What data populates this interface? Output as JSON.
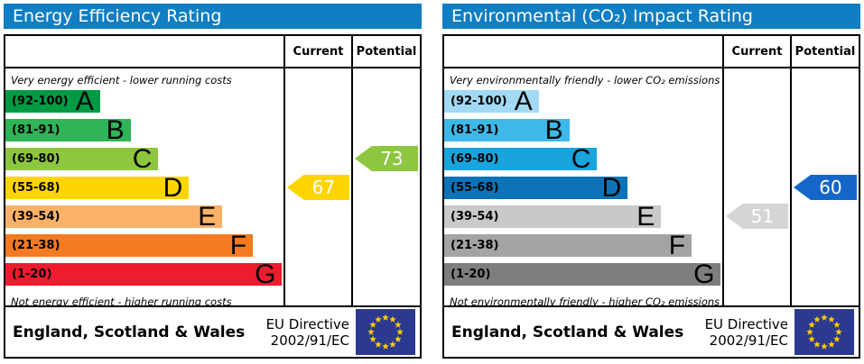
{
  "chart_data": [
    {
      "type": "bar",
      "title": "Energy Efficiency Rating",
      "top_caption": "Very energy efficient - lower running costs",
      "bottom_caption": "Not energy efficient - higher running costs",
      "categories": [
        "A",
        "B",
        "C",
        "D",
        "E",
        "F",
        "G"
      ],
      "band_ranges": [
        "92-100",
        "81-91",
        "69-80",
        "55-68",
        "39-54",
        "21-38",
        "1-20"
      ],
      "bar_width_pct": [
        34,
        45,
        55,
        66,
        78,
        89,
        99.5
      ],
      "current": 67,
      "current_band": "D",
      "potential": 73,
      "potential_band": "C",
      "footer": "England, Scotland & Wales — EU Directive 2002/91/EC"
    },
    {
      "type": "bar",
      "title": "Environmental (CO₂) Impact Rating",
      "top_caption": "Very environmentally friendly - lower CO₂ emissions",
      "bottom_caption": "Not environmentally friendly - higher CO₂ emissions",
      "categories": [
        "A",
        "B",
        "C",
        "D",
        "E",
        "F",
        "G"
      ],
      "band_ranges": [
        "92-100",
        "81-91",
        "69-80",
        "55-68",
        "39-54",
        "21-38",
        "1-20"
      ],
      "bar_width_pct": [
        34,
        45,
        55,
        66,
        78,
        89,
        99.5
      ],
      "current": 51,
      "current_band": "E",
      "potential": 60,
      "potential_band": "D",
      "footer": "England, Scotland & Wales — EU Directive 2002/91/EC"
    }
  ],
  "panels": [
    {
      "title": "Energy Efficiency Rating",
      "title_bg": "#0f7ec3",
      "col_current": "Current",
      "col_potential": "Potential",
      "top_caption": "Very energy efficient - lower running costs",
      "bottom_caption": "Not energy efficient - higher running costs",
      "bands": [
        {
          "letter": "A",
          "range": "(92-100)",
          "color": "#009a44",
          "width_pct": 34
        },
        {
          "letter": "B",
          "range": "(81-91)",
          "color": "#2fb457",
          "width_pct": 45
        },
        {
          "letter": "C",
          "range": "(69-80)",
          "color": "#8dc63f",
          "width_pct": 55
        },
        {
          "letter": "D",
          "range": "(55-68)",
          "color": "#ffd500",
          "width_pct": 66
        },
        {
          "letter": "E",
          "range": "(39-54)",
          "color": "#fbb268",
          "width_pct": 78
        },
        {
          "letter": "F",
          "range": "(21-38)",
          "color": "#f37b21",
          "width_pct": 89
        },
        {
          "letter": "G",
          "range": "(1-20)",
          "color": "#ed1c2e",
          "width_pct": 99.5
        }
      ],
      "current": {
        "value": "67",
        "band_index": 3,
        "color": "#ffd500"
      },
      "potential": {
        "value": "73",
        "band_index": 2,
        "color": "#8dc63f"
      },
      "footer_region": "England, Scotland & Wales",
      "directive_line1": "EU Directive",
      "directive_line2": "2002/91/EC",
      "flag_bg": "#2b3990",
      "flag_star": "#ffcc00"
    },
    {
      "title": "Environmental (CO₂) Impact Rating",
      "title_bg": "#0f7ec3",
      "col_current": "Current",
      "col_potential": "Potential",
      "top_caption": "Very environmentally friendly - lower CO₂ emissions",
      "bottom_caption": "Not environmentally friendly - higher CO₂ emissions",
      "bands": [
        {
          "letter": "A",
          "range": "(92-100)",
          "color": "#a2d9f3",
          "width_pct": 34
        },
        {
          "letter": "B",
          "range": "(81-91)",
          "color": "#3eb8e8",
          "width_pct": 45
        },
        {
          "letter": "C",
          "range": "(69-80)",
          "color": "#1aa4dc",
          "width_pct": 55
        },
        {
          "letter": "D",
          "range": "(55-68)",
          "color": "#0c73b8",
          "width_pct": 66
        },
        {
          "letter": "E",
          "range": "(39-54)",
          "color": "#c9c9c9",
          "width_pct": 78
        },
        {
          "letter": "F",
          "range": "(21-38)",
          "color": "#a4a4a4",
          "width_pct": 89
        },
        {
          "letter": "G",
          "range": "(1-20)",
          "color": "#7e7e7e",
          "width_pct": 99.5
        }
      ],
      "current": {
        "value": "51",
        "band_index": 4,
        "color": "#d5d5d5"
      },
      "potential": {
        "value": "60",
        "band_index": 3,
        "color": "#1467c8"
      },
      "footer_region": "England, Scotland & Wales",
      "directive_line1": "EU Directive",
      "directive_line2": "2002/91/EC",
      "flag_bg": "#2b3990",
      "flag_star": "#ffcc00"
    }
  ]
}
